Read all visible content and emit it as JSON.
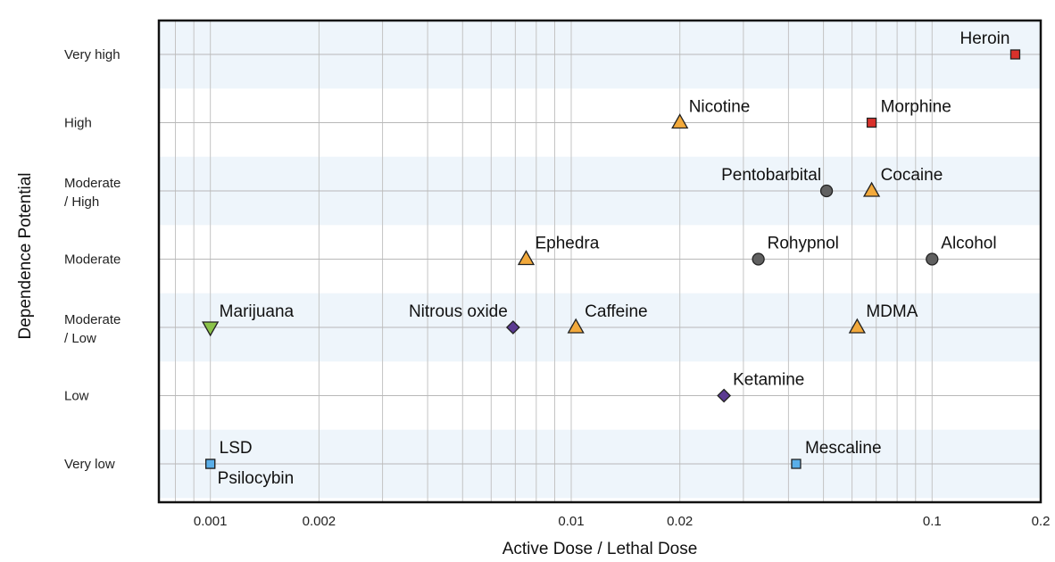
{
  "chart_data": {
    "type": "scatter",
    "xlabel": "Active Dose / Lethal Dose",
    "ylabel": "Dependence Potential",
    "x_scale": "log",
    "xlim": [
      0.00072,
      0.2
    ],
    "grid": true,
    "x_ticks": [
      {
        "value": 0.001,
        "label": "0.001"
      },
      {
        "value": 0.002,
        "label": "0.002"
      },
      {
        "value": 0.01,
        "label": "0.01"
      },
      {
        "value": 0.02,
        "label": "0.02"
      },
      {
        "value": 0.1,
        "label": "0.1"
      },
      {
        "value": 0.2,
        "label": "0.2"
      }
    ],
    "y_categories": [
      [
        "Very low"
      ],
      [
        "Low"
      ],
      [
        "Moderate",
        "/ Low"
      ],
      [
        "Moderate"
      ],
      [
        "Moderate",
        "/ High"
      ],
      [
        "High"
      ],
      [
        "Very high"
      ]
    ],
    "series_styles": [
      {
        "marker": "square",
        "color": "#d9312b"
      },
      {
        "marker": "triangle-up",
        "color": "#f2a93b"
      },
      {
        "marker": "circle",
        "color": "#606060"
      },
      {
        "marker": "diamond",
        "color": "#5b3a91"
      },
      {
        "marker": "triangle-down",
        "color": "#8bc34a"
      },
      {
        "marker": "square",
        "color": "#5aaee8"
      }
    ],
    "points": [
      {
        "label": "Heroin",
        "x": 0.17,
        "y": 6,
        "style": 0,
        "label_pos": "above-left"
      },
      {
        "label": "Morphine",
        "x": 0.068,
        "y": 5,
        "style": 0,
        "label_pos": "above-right"
      },
      {
        "label": "Nicotine",
        "x": 0.02,
        "y": 5,
        "style": 1,
        "label_pos": "above-right"
      },
      {
        "label": "Pentobarbital",
        "x": 0.051,
        "y": 4,
        "style": 2,
        "label_pos": "above-left"
      },
      {
        "label": "Cocaine",
        "x": 0.068,
        "y": 4,
        "style": 1,
        "label_pos": "above-right"
      },
      {
        "label": "Ephedra",
        "x": 0.0075,
        "y": 3,
        "style": 1,
        "label_pos": "above-right"
      },
      {
        "label": "Rohypnol",
        "x": 0.033,
        "y": 3,
        "style": 2,
        "label_pos": "above-right"
      },
      {
        "label": "Alcohol",
        "x": 0.1,
        "y": 3,
        "style": 2,
        "label_pos": "above-right"
      },
      {
        "label": "Marijuana",
        "x": 0.001,
        "y": 2,
        "style": 4,
        "label_pos": "above-right"
      },
      {
        "label": "Nitrous oxide",
        "x": 0.0069,
        "y": 2,
        "style": 3,
        "label_pos": "above-left"
      },
      {
        "label": "Caffeine",
        "x": 0.0103,
        "y": 2,
        "style": 1,
        "label_pos": "above-right"
      },
      {
        "label": "MDMA",
        "x": 0.062,
        "y": 2,
        "style": 1,
        "label_pos": "above-right"
      },
      {
        "label": "Ketamine",
        "x": 0.0265,
        "y": 1,
        "style": 3,
        "label_pos": "above-right"
      },
      {
        "label": "LSD",
        "x": 0.001,
        "y": 0,
        "style": 5,
        "label_pos": "above-right"
      },
      {
        "label": "Psilocybin",
        "x": 0.001,
        "y": 0,
        "style": 5,
        "label_pos": "below-right"
      },
      {
        "label": "Mescaline",
        "x": 0.042,
        "y": 0,
        "style": 5,
        "label_pos": "above-right"
      }
    ]
  }
}
